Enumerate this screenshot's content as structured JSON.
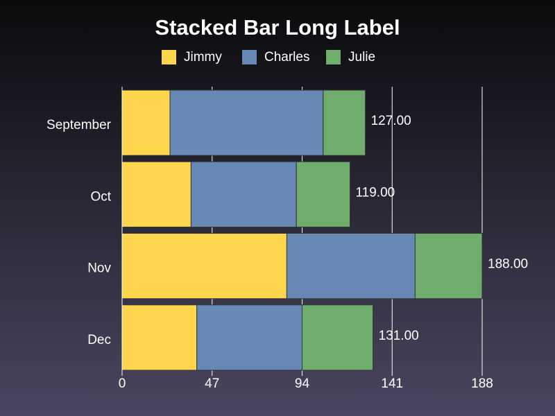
{
  "chart_data": {
    "type": "stacked-bar-horizontal",
    "title": "Stacked Bar Long Label",
    "categories": [
      "September",
      "Oct",
      "Nov",
      "Dec"
    ],
    "series": [
      {
        "name": "Jimmy",
        "color": "#fdd64e",
        "values": [
          25,
          36,
          86,
          39
        ]
      },
      {
        "name": "Charles",
        "color": "#6788b4",
        "values": [
          80,
          55,
          67,
          55
        ]
      },
      {
        "name": "Julie",
        "color": "#6ead6c",
        "values": [
          22,
          28,
          35,
          37
        ]
      }
    ],
    "totals": {
      "values": [
        127,
        119,
        188,
        131
      ],
      "value_labels": [
        "127.00",
        "119.00",
        "188.00",
        "131.00"
      ]
    },
    "xlim": [
      0,
      188
    ],
    "xticks": [
      0,
      47,
      94,
      141,
      188
    ],
    "grid": true
  }
}
